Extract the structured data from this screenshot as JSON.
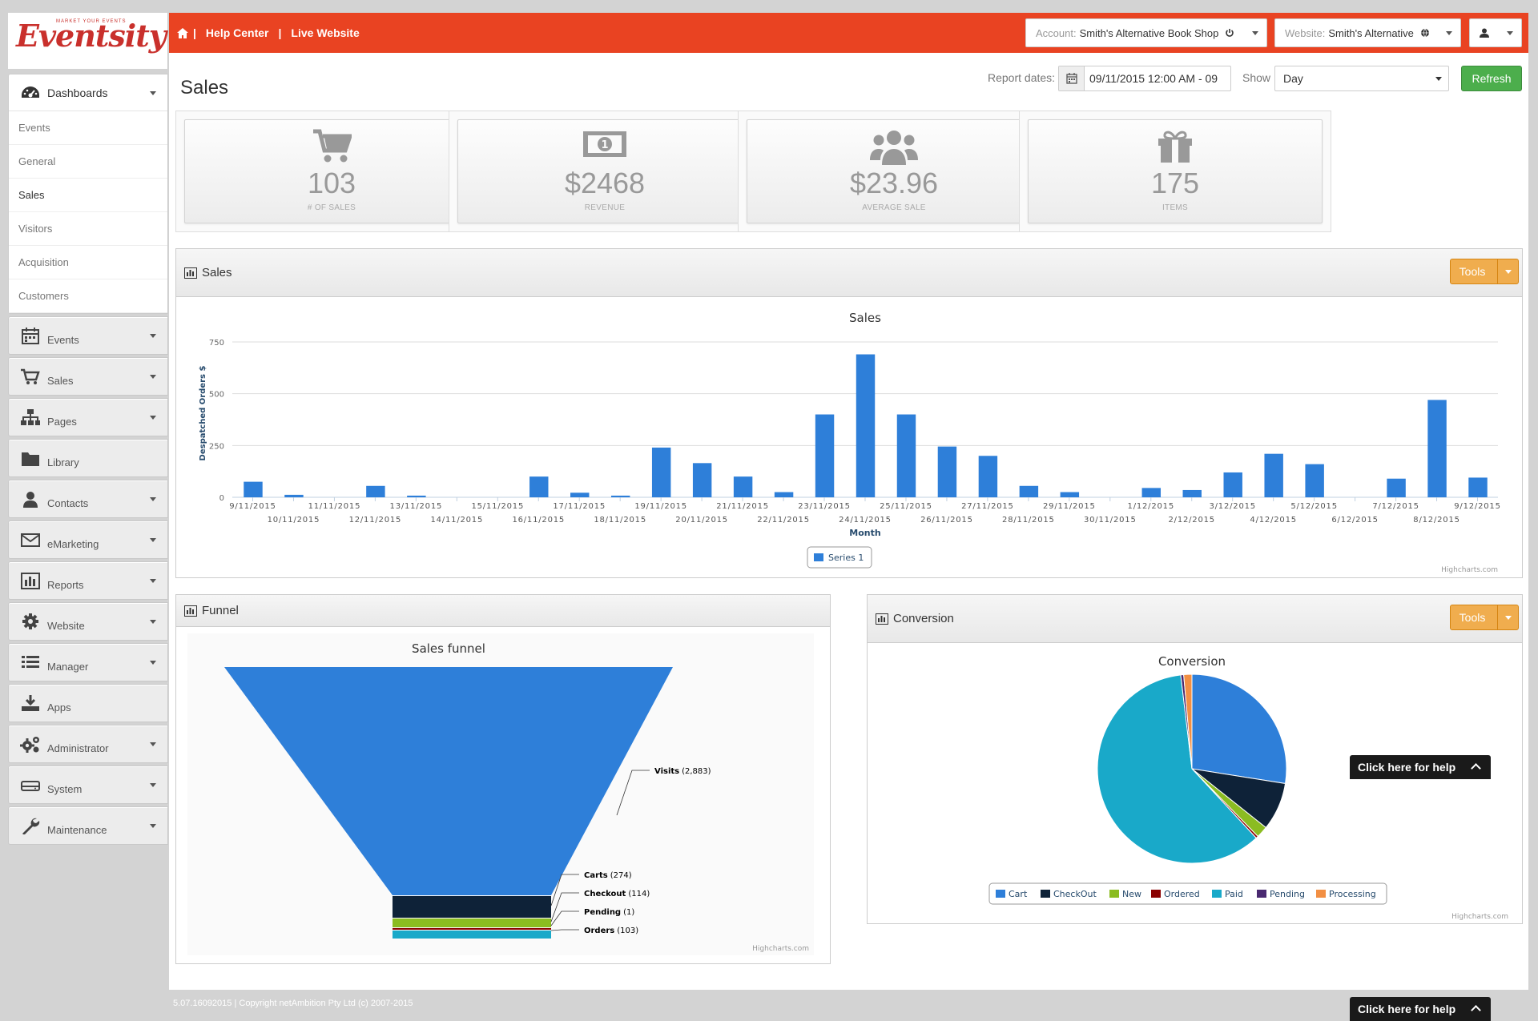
{
  "brand": {
    "logo_text": "Eventsity",
    "logo_tagline": "MARKET YOUR EVENTS"
  },
  "topbar": {
    "links": [
      "Help Center",
      "Live Website"
    ],
    "separator": "|",
    "account_label": "Account:",
    "account_value": "Smith's Alternative Book Shop",
    "website_label": "Website:",
    "website_value": "Smith's Alternative"
  },
  "sidebar": {
    "dashboards_label": "Dashboards",
    "dashboard_items": [
      "Events",
      "General",
      "Sales",
      "Visitors",
      "Acquisition",
      "Customers"
    ],
    "active_item": "Sales",
    "menu_items": [
      {
        "label": "Events",
        "icon": "calendar-icon"
      },
      {
        "label": "Sales",
        "icon": "cart-icon"
      },
      {
        "label": "Pages",
        "icon": "sitemap-icon"
      },
      {
        "label": "Library",
        "icon": "folder-icon"
      },
      {
        "label": "Contacts",
        "icon": "user-icon"
      },
      {
        "label": "eMarketing",
        "icon": "envelope-icon"
      },
      {
        "label": "Reports",
        "icon": "bar-chart-icon"
      },
      {
        "label": "Website",
        "icon": "gear-icon"
      },
      {
        "label": "Manager",
        "icon": "list-icon"
      },
      {
        "label": "Apps",
        "icon": "download-icon"
      },
      {
        "label": "Administrator",
        "icon": "gears-icon"
      },
      {
        "label": "System",
        "icon": "hdd-icon"
      },
      {
        "label": "Maintenance",
        "icon": "wrench-icon"
      }
    ]
  },
  "page": {
    "title": "Sales",
    "report_dates_label": "Report dates:",
    "report_dates_value": "09/11/2015 12:00 AM - 09",
    "show_label": "Show",
    "show_value": "Day",
    "refresh_label": "Refresh"
  },
  "stats": [
    {
      "value": "103",
      "label": "# OF SALES",
      "icon": "cart-icon"
    },
    {
      "value": "$2468",
      "label": "REVENUE",
      "icon": "money-icon"
    },
    {
      "value": "$23.96",
      "label": "AVERAGE SALE",
      "icon": "users-icon"
    },
    {
      "value": "175",
      "label": "ITEMS",
      "icon": "gift-icon"
    }
  ],
  "panels": {
    "sales_title": "Sales",
    "funnel_title": "Funnel",
    "conversion_title": "Conversion",
    "tools_label": "Tools",
    "credit": "Highcharts.com"
  },
  "help": {
    "label": "Click here for help"
  },
  "footer": {
    "text": "5.07.16092015 | Copyright netAmbition Pty Ltd (c) 2007-2015"
  },
  "chart_data": [
    {
      "type": "bar",
      "title": "Sales",
      "xlabel": "Month",
      "ylabel": "Despatched Orders $",
      "ylim": [
        0,
        750
      ],
      "yticks": [
        0,
        250,
        500,
        750
      ],
      "grid": true,
      "legend_position": "bottom-center",
      "categories": [
        "9/11/2015",
        "10/11/2015",
        "11/11/2015",
        "12/11/2015",
        "13/11/2015",
        "14/11/2015",
        "15/11/2015",
        "16/11/2015",
        "17/11/2015",
        "18/11/2015",
        "19/11/2015",
        "20/11/2015",
        "21/11/2015",
        "22/11/2015",
        "23/11/2015",
        "24/11/2015",
        "25/11/2015",
        "26/11/2015",
        "27/11/2015",
        "28/11/2015",
        "29/11/2015",
        "30/11/2015",
        "1/12/2015",
        "2/12/2015",
        "3/12/2015",
        "4/12/2015",
        "5/12/2015",
        "6/12/2015",
        "7/12/2015",
        "8/12/2015",
        "9/12/2015"
      ],
      "series": [
        {
          "name": "Series 1",
          "color": "#2e7fd9",
          "values": [
            75,
            12,
            0,
            55,
            8,
            0,
            0,
            100,
            22,
            8,
            240,
            165,
            100,
            25,
            400,
            690,
            400,
            245,
            200,
            55,
            25,
            0,
            45,
            35,
            120,
            210,
            160,
            0,
            90,
            470,
            95
          ]
        }
      ]
    },
    {
      "type": "funnel",
      "title": "Sales funnel",
      "stages": [
        {
          "name": "Visits",
          "value": 2883,
          "display": "(2,883)",
          "color": "#2e7fd9"
        },
        {
          "name": "Carts",
          "value": 274,
          "display": "(274)",
          "color": "#0e2238"
        },
        {
          "name": "Checkout",
          "value": 114,
          "display": "(114)",
          "color": "#8bbc21"
        },
        {
          "name": "Pending",
          "value": 1,
          "display": "(1)",
          "color": "#8a0000"
        },
        {
          "name": "Orders",
          "value": 103,
          "display": "(103)",
          "color": "#19a9c9"
        }
      ]
    },
    {
      "type": "pie",
      "title": "Conversion",
      "legend_position": "bottom-center",
      "slices": [
        {
          "name": "Cart",
          "value": 27.5,
          "color": "#2e7fd9"
        },
        {
          "name": "CheckOut",
          "value": 8.2,
          "color": "#0e2238"
        },
        {
          "name": "New",
          "value": 2.0,
          "color": "#8bbc21"
        },
        {
          "name": "Ordered",
          "value": 0.4,
          "color": "#8a0000"
        },
        {
          "name": "Paid",
          "value": 60.0,
          "color": "#19a9c9"
        },
        {
          "name": "Pending",
          "value": 0.5,
          "color": "#492970"
        },
        {
          "name": "Processing",
          "value": 1.4,
          "color": "#f28f43"
        }
      ]
    }
  ]
}
